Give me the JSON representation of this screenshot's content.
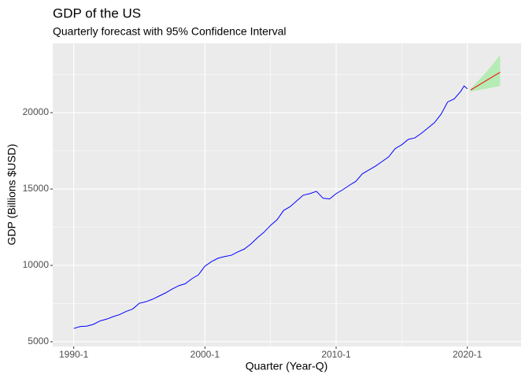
{
  "chart_data": {
    "type": "line",
    "title": "GDP of the US",
    "subtitle": "Quarterly forecast with 95% Confidence Interval",
    "x_label": "Quarter (Year-Q)",
    "y_label": "GDP (Billions $USD)",
    "xlim": [
      1988.4,
      2024.1
    ],
    "ylim": [
      4690,
      24540
    ],
    "xticks": [
      {
        "value": 1990,
        "label": "1990-1"
      },
      {
        "value": 2000,
        "label": "2000-1"
      },
      {
        "value": 2010,
        "label": "2010-1"
      },
      {
        "value": 2020,
        "label": "2020-1"
      }
    ],
    "xminor": [
      1995,
      2005,
      2015
    ],
    "yticks": [
      5000,
      10000,
      15000,
      20000
    ],
    "yminor": [
      7500,
      12500,
      17500,
      22500
    ],
    "grid": true,
    "band": {
      "color": "#b5ecb5",
      "x": [
        2020.25,
        2021,
        2021.75,
        2022.5
      ],
      "lower": [
        21380,
        21500,
        21620,
        21750
      ],
      "upper": [
        21580,
        22240,
        22960,
        23780
      ]
    },
    "series": [
      {
        "color": "#0000ff",
        "x": [
          1990,
          1990.5,
          1991,
          1991.5,
          1992,
          1992.5,
          1993,
          1993.5,
          1994,
          1994.5,
          1995,
          1995.5,
          1996,
          1996.5,
          1997,
          1997.5,
          1998,
          1998.5,
          1999,
          1999.5,
          2000,
          2000.5,
          2001,
          2001.5,
          2002,
          2002.5,
          2003,
          2003.5,
          2004,
          2004.5,
          2005,
          2005.5,
          2006,
          2006.5,
          2007,
          2007.5,
          2008,
          2008.5,
          2009,
          2009.5,
          2010,
          2010.5,
          2011,
          2011.5,
          2012,
          2012.5,
          2013,
          2013.5,
          2014,
          2014.5,
          2015,
          2015.5,
          2016,
          2016.5,
          2017,
          2017.5,
          2018,
          2018.5,
          2019,
          2019.5,
          2019.75,
          2020
        ],
        "values": [
          5873,
          6000,
          6023,
          6140,
          6363,
          6480,
          6643,
          6780,
          6989,
          7150,
          7522,
          7620,
          7782,
          7990,
          8202,
          8450,
          8667,
          8800,
          9125,
          9380,
          9950,
          10250,
          10470,
          10580,
          10660,
          10880,
          11070,
          11400,
          11810,
          12170,
          12620,
          12990,
          13600,
          13850,
          14230,
          14600,
          14700,
          14850,
          14400,
          14350,
          14700,
          14950,
          15240,
          15500,
          16000,
          16250,
          16500,
          16800,
          17100,
          17650,
          17900,
          18250,
          18350,
          18650,
          19000,
          19350,
          19900,
          20700,
          20900,
          21400,
          21750,
          21560
        ]
      },
      {
        "color": "#ff0000",
        "x": [
          2020.25,
          2021,
          2021.75,
          2022.5
        ],
        "values": [
          21480,
          21870,
          22260,
          22650
        ]
      }
    ]
  }
}
